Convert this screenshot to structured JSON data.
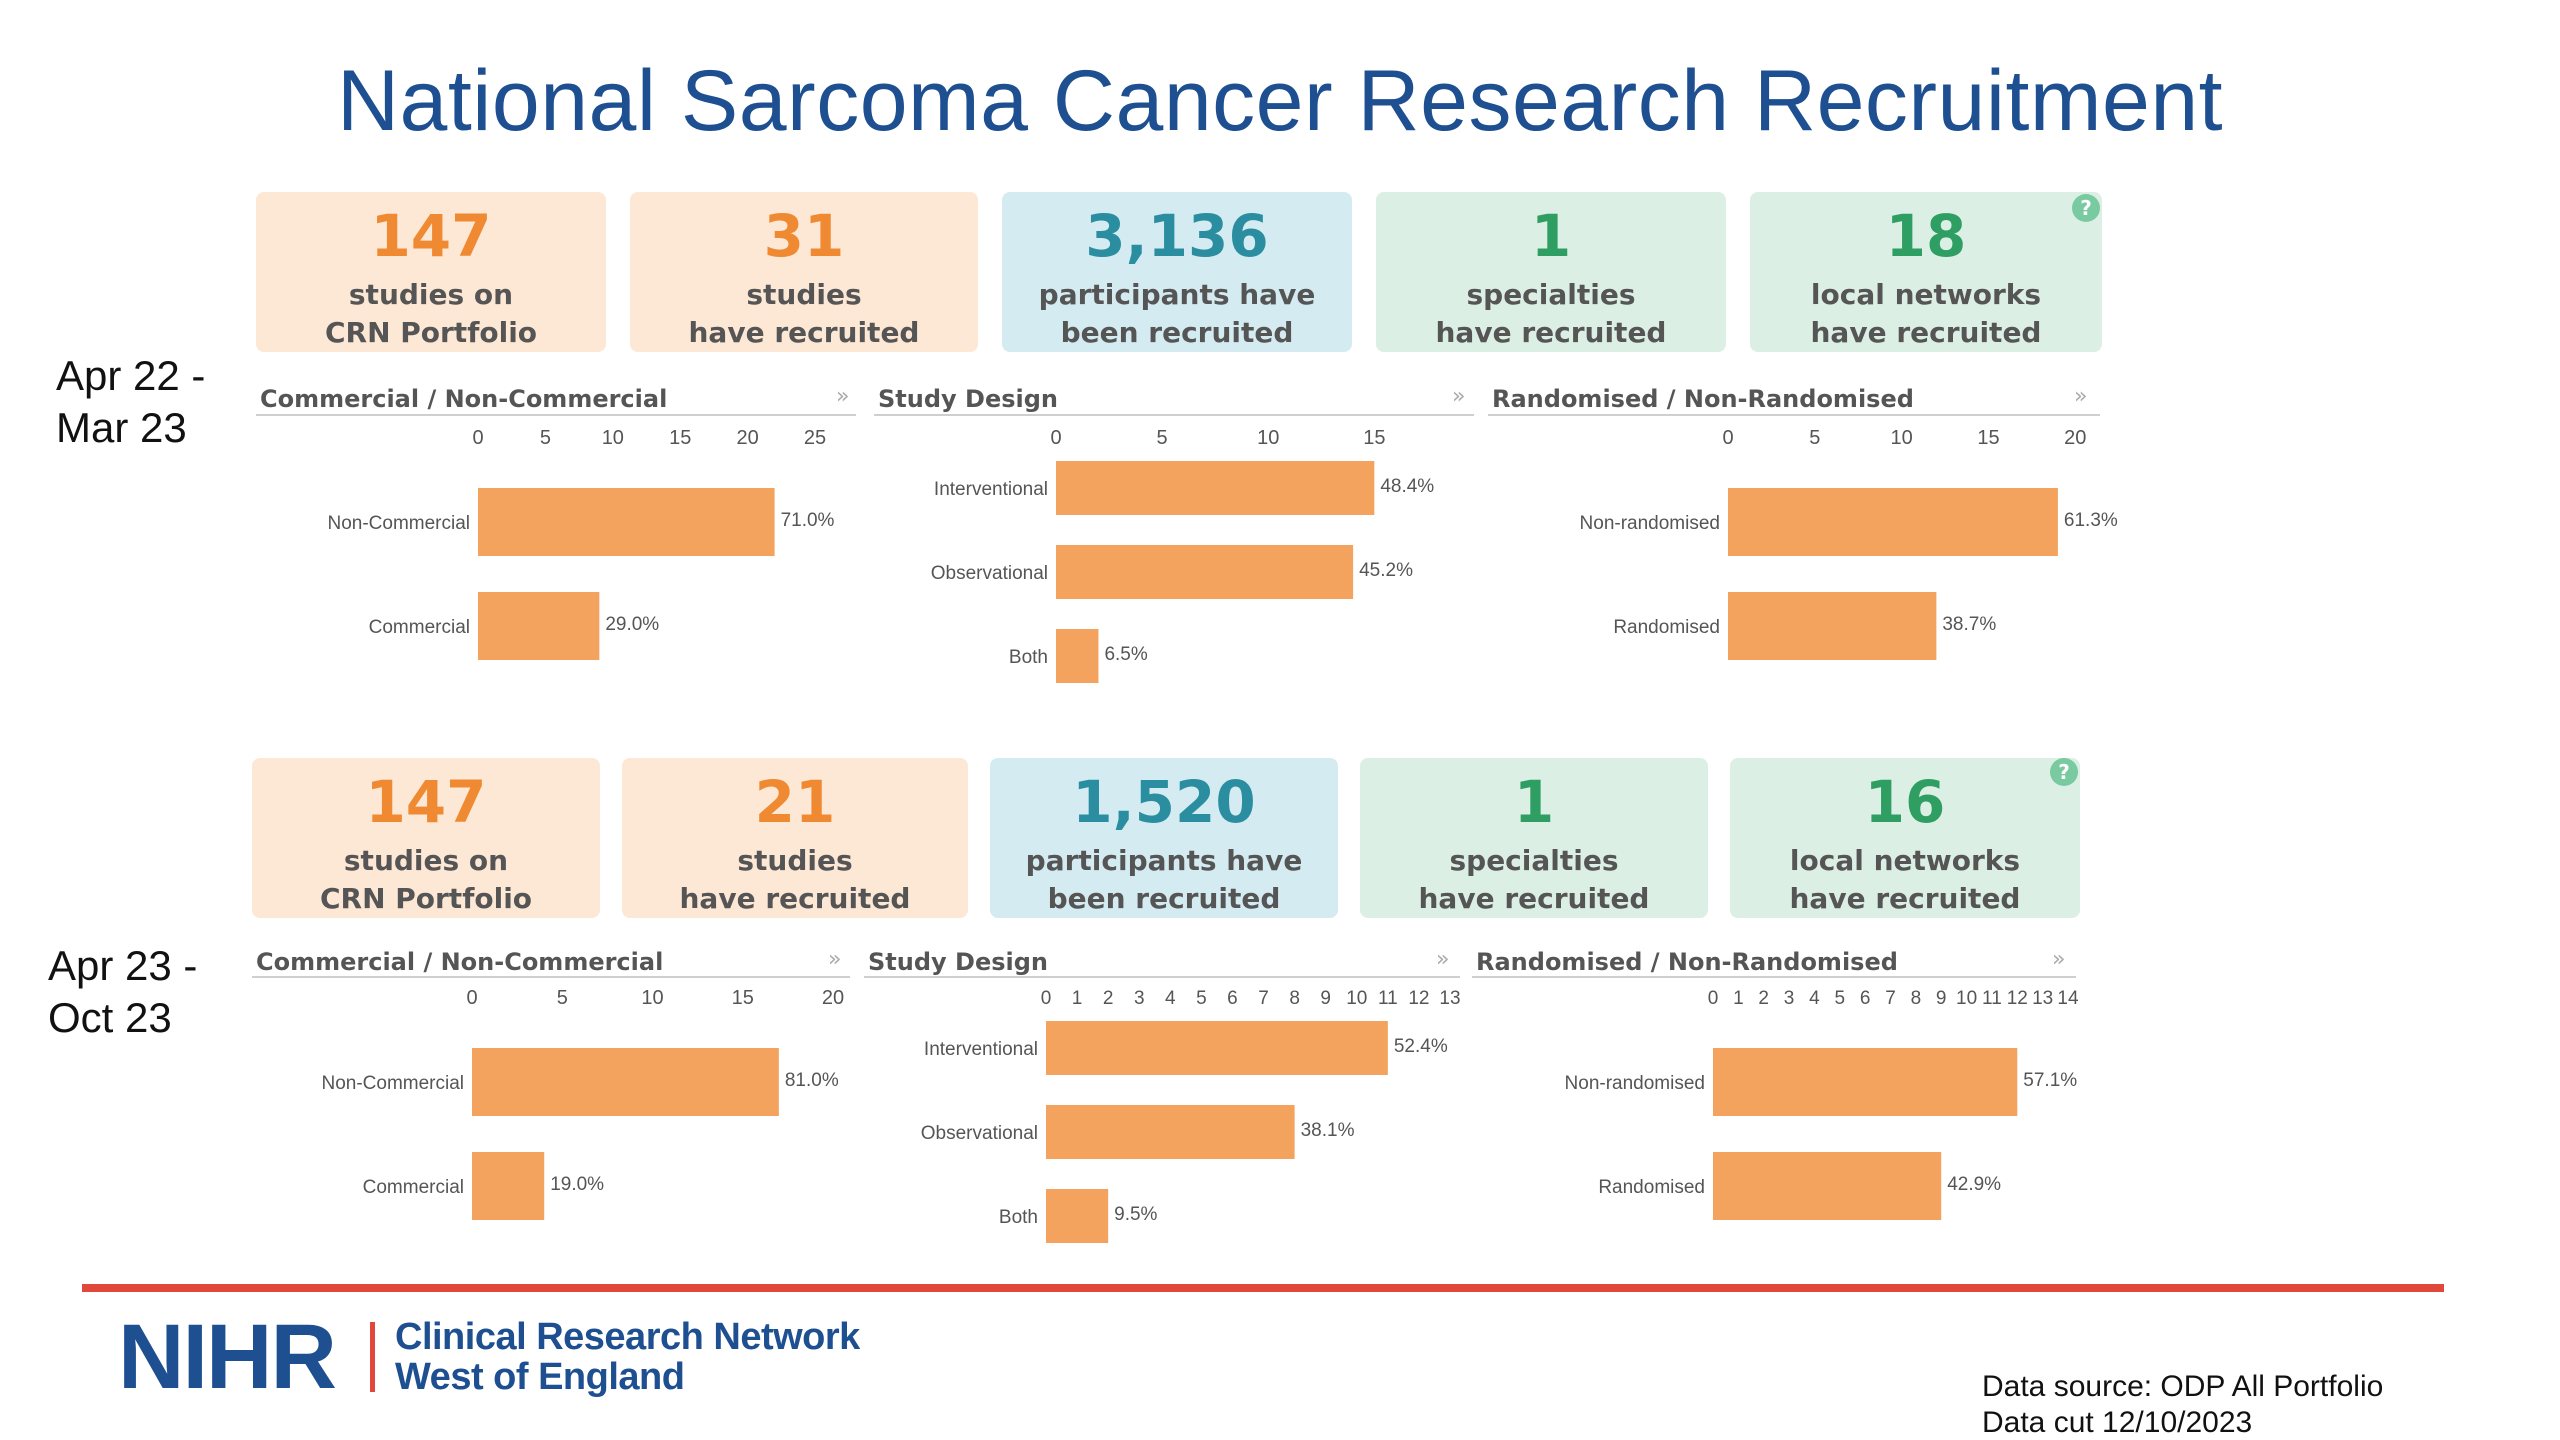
{
  "title": "National Sarcoma Cancer Research Recruitment",
  "colors": {
    "bar": "#f3a35e",
    "title": "#1d4f91",
    "rule": "#e0483c"
  },
  "periods": [
    {
      "label_line1": "Apr 22 -",
      "label_line2": "Mar 23",
      "kpis": [
        {
          "value": "147",
          "line1": "studies on",
          "line2": "CRN Portfolio",
          "color": "peach"
        },
        {
          "value": "31",
          "line1": "studies",
          "line2": "have recruited",
          "color": "peach"
        },
        {
          "value": "3,136",
          "line1": "participants have",
          "line2": "been recruited",
          "color": "blue"
        },
        {
          "value": "1",
          "line1": "specialties",
          "line2": "have recruited",
          "color": "green"
        },
        {
          "value": "18",
          "line1": "local networks",
          "line2": "have recruited",
          "color": "green"
        }
      ],
      "help_icon": "?"
    },
    {
      "label_line1": "Apr 23 -",
      "label_line2": "Oct 23",
      "kpis": [
        {
          "value": "147",
          "line1": "studies on",
          "line2": "CRN Portfolio",
          "color": "peach"
        },
        {
          "value": "21",
          "line1": "studies",
          "line2": "have recruited",
          "color": "peach"
        },
        {
          "value": "1,520",
          "line1": "participants have",
          "line2": "been recruited",
          "color": "blue"
        },
        {
          "value": "1",
          "line1": "specialties",
          "line2": "have recruited",
          "color": "green"
        },
        {
          "value": "16",
          "line1": "local networks",
          "line2": "have recruited",
          "color": "green"
        }
      ],
      "help_icon": "?"
    }
  ],
  "expand_glyph": "»",
  "chart_data": [
    {
      "type": "bar",
      "orientation": "horizontal",
      "period": "Apr 22 - Mar 23",
      "title": "Commercial / Non-Commercial",
      "categories": [
        "Non-Commercial",
        "Commercial"
      ],
      "values": [
        22,
        9
      ],
      "labels": [
        "71.0%",
        "29.0%"
      ],
      "xlim": [
        0,
        27
      ],
      "ticks": [
        0,
        5,
        10,
        15,
        20,
        25
      ]
    },
    {
      "type": "bar",
      "orientation": "horizontal",
      "period": "Apr 22 - Mar 23",
      "title": "Study Design",
      "categories": [
        "Interventional",
        "Observational",
        "Both"
      ],
      "values": [
        15,
        14,
        2
      ],
      "labels": [
        "48.4%",
        "45.2%",
        "6.5%"
      ],
      "xlim": [
        0,
        18
      ],
      "ticks": [
        0,
        5,
        10,
        15
      ]
    },
    {
      "type": "bar",
      "orientation": "horizontal",
      "period": "Apr 22 - Mar 23",
      "title": "Randomised / Non-Randomised",
      "categories": [
        "Non-randomised",
        "Randomised"
      ],
      "values": [
        19,
        12
      ],
      "labels": [
        "61.3%",
        "38.7%"
      ],
      "xlim": [
        0,
        22
      ],
      "ticks": [
        0,
        5,
        10,
        15,
        20
      ]
    },
    {
      "type": "bar",
      "orientation": "horizontal",
      "period": "Apr 23 - Oct 23",
      "title": "Commercial / Non-Commercial",
      "categories": [
        "Non-Commercial",
        "Commercial"
      ],
      "values": [
        17,
        4
      ],
      "labels": [
        "81.0%",
        "19.0%"
      ],
      "xlim": [
        0,
        20
      ],
      "ticks": [
        0,
        5,
        10,
        15,
        20
      ]
    },
    {
      "type": "bar",
      "orientation": "horizontal",
      "period": "Apr 23 - Oct 23",
      "title": "Study Design",
      "categories": [
        "Interventional",
        "Observational",
        "Both"
      ],
      "values": [
        11,
        8,
        2
      ],
      "labels": [
        "52.4%",
        "38.1%",
        "9.5%"
      ],
      "xlim": [
        0,
        13
      ],
      "ticks": [
        0,
        1,
        2,
        3,
        4,
        5,
        6,
        7,
        8,
        9,
        10,
        11,
        12,
        13
      ]
    },
    {
      "type": "bar",
      "orientation": "horizontal",
      "period": "Apr 23 - Oct 23",
      "title": "Randomised / Non-Randomised",
      "categories": [
        "Non-randomised",
        "Randomised"
      ],
      "values": [
        12,
        9
      ],
      "labels": [
        "57.1%",
        "42.9%"
      ],
      "xlim": [
        0,
        14
      ],
      "ticks": [
        0,
        1,
        2,
        3,
        4,
        5,
        6,
        7,
        8,
        9,
        10,
        11,
        12,
        13,
        14
      ]
    }
  ],
  "footer": {
    "logo_main": "NIHR",
    "logo_line1": "Clinical Research Network",
    "logo_line2": "West of England",
    "source_line1": "Data source: ODP All Portfolio",
    "source_line2": "Data cut 12/10/2023"
  }
}
